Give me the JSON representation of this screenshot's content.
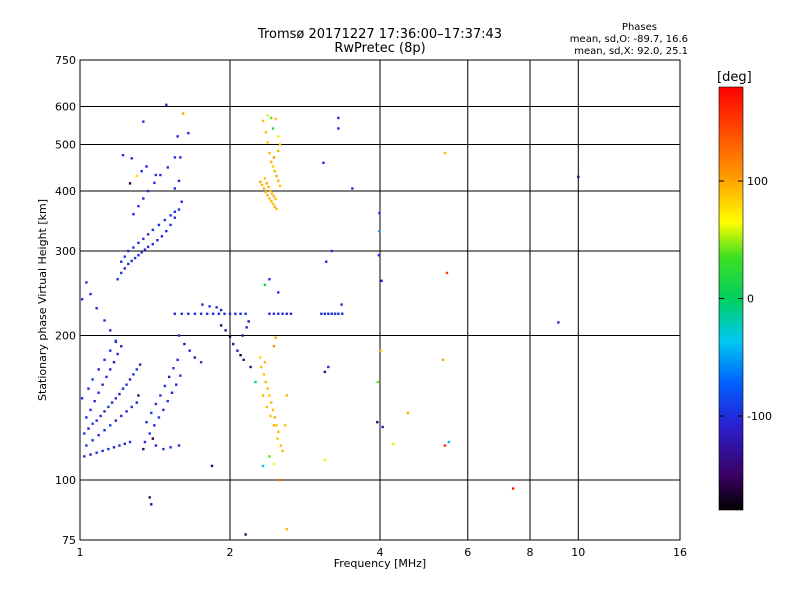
{
  "header": {
    "title": "Tromsø 20171227 17:36:00–17:37:43",
    "subtitle": "RwPretec (8p)"
  },
  "stats": {
    "heading": "Phases",
    "o_line": "mean, sd,O: -89.7, 16.6",
    "x_line": "mean, sd,X:  92.0, 25.1"
  },
  "colorbar": {
    "unit": "[deg]",
    "range": [
      -180,
      180
    ],
    "tick_values": [
      100,
      0,
      -100
    ],
    "tick_labels": [
      "100",
      "0",
      "-100"
    ]
  },
  "chart_data": {
    "type": "scatter",
    "title": "Tromsø 20171227 17:36:00–17:37:43",
    "subtitle": "RwPretec (8p)",
    "xlabel": "Frequency [MHz]",
    "ylabel": "Stationary phase Virtual Height [km]",
    "x_scale": "log",
    "y_scale": "log",
    "xlim": [
      1,
      16
    ],
    "ylim": [
      75,
      750
    ],
    "x_ticks": [
      1,
      2,
      4,
      6,
      8,
      10,
      16
    ],
    "x_tick_labels": [
      "1",
      "2",
      "4",
      "6",
      "8",
      "10",
      "16"
    ],
    "x_gridlines": [
      2,
      4,
      6,
      8,
      10
    ],
    "y_ticks": [
      75,
      100,
      200,
      300,
      400,
      500,
      600,
      750
    ],
    "y_tick_labels": [
      "75",
      "100",
      "200",
      "300",
      "400",
      "500",
      "600",
      "750"
    ],
    "y_gridlines": [
      100,
      200,
      300,
      400,
      500,
      600
    ],
    "grid": true,
    "color_variable": "phase [deg]",
    "points": [
      [
        1.02,
        112,
        -100
      ],
      [
        1.05,
        113,
        -105
      ],
      [
        1.08,
        114,
        -98
      ],
      [
        1.11,
        115,
        -102
      ],
      [
        1.14,
        116,
        -95
      ],
      [
        1.17,
        117,
        -108
      ],
      [
        1.2,
        118,
        -100
      ],
      [
        1.23,
        119,
        -112
      ],
      [
        1.26,
        120,
        -96
      ],
      [
        1.02,
        125,
        -90
      ],
      [
        1.04,
        128,
        -110
      ],
      [
        1.06,
        131,
        -88
      ],
      [
        1.08,
        133,
        -104
      ],
      [
        1.1,
        136,
        -99
      ],
      [
        1.12,
        139,
        -115
      ],
      [
        1.14,
        142,
        -92
      ],
      [
        1.16,
        145,
        -106
      ],
      [
        1.18,
        148,
        -97
      ],
      [
        1.2,
        151,
        -120
      ],
      [
        1.22,
        155,
        -101
      ],
      [
        1.24,
        158,
        -94
      ],
      [
        1.26,
        162,
        -109
      ],
      [
        1.28,
        166,
        -103
      ],
      [
        1.3,
        170,
        -91
      ],
      [
        1.32,
        174,
        -113
      ],
      [
        1.03,
        135,
        -100
      ],
      [
        1.05,
        140,
        -95
      ],
      [
        1.07,
        146,
        -107
      ],
      [
        1.09,
        152,
        -99
      ],
      [
        1.11,
        158,
        -111
      ],
      [
        1.13,
        164,
        -96
      ],
      [
        1.15,
        170,
        -104
      ],
      [
        1.17,
        176,
        -118
      ],
      [
        1.19,
        183,
        -98
      ],
      [
        1.21,
        190,
        -102
      ],
      [
        1.01,
        148,
        -97
      ],
      [
        1.04,
        155,
        -103
      ],
      [
        1.06,
        162,
        -92
      ],
      [
        1.09,
        170,
        -115
      ],
      [
        1.12,
        178,
        -100
      ],
      [
        1.15,
        186,
        -96
      ],
      [
        1.18,
        194,
        -108
      ],
      [
        1.03,
        118,
        -94
      ],
      [
        1.06,
        121,
        -101
      ],
      [
        1.09,
        124,
        -99
      ],
      [
        1.12,
        127,
        -107
      ],
      [
        1.15,
        130,
        -93
      ],
      [
        1.18,
        133,
        -110
      ],
      [
        1.21,
        136,
        -98
      ],
      [
        1.24,
        139,
        -105
      ],
      [
        1.27,
        142,
        -97
      ],
      [
        1.3,
        145,
        -112
      ],
      [
        1.35,
        120,
        -100
      ],
      [
        1.38,
        125,
        -95
      ],
      [
        1.41,
        130,
        -108
      ],
      [
        1.44,
        135,
        -99
      ],
      [
        1.47,
        140,
        -103
      ],
      [
        1.5,
        146,
        -96
      ],
      [
        1.53,
        152,
        -110
      ],
      [
        1.56,
        158,
        -101
      ],
      [
        1.59,
        165,
        -97
      ],
      [
        1.36,
        132,
        -104
      ],
      [
        1.39,
        138,
        -92
      ],
      [
        1.42,
        144,
        -106
      ],
      [
        1.45,
        150,
        -100
      ],
      [
        1.48,
        157,
        -98
      ],
      [
        1.51,
        164,
        -113
      ],
      [
        1.54,
        171,
        -95
      ],
      [
        1.57,
        178,
        -102
      ],
      [
        1.42,
        118,
        -108
      ],
      [
        1.47,
        116,
        -100
      ],
      [
        1.52,
        117,
        -97
      ],
      [
        1.58,
        118,
        -104
      ],
      [
        1.34,
        116,
        -150
      ],
      [
        1.4,
        122,
        -160
      ],
      [
        1.31,
        150,
        -145
      ],
      [
        1.01,
        238,
        -100
      ],
      [
        1.03,
        258,
        -98
      ],
      [
        1.05,
        244,
        -101
      ],
      [
        1.08,
        228,
        -105
      ],
      [
        1.12,
        215,
        -99
      ],
      [
        1.15,
        205,
        -103
      ],
      [
        1.18,
        195,
        -95
      ],
      [
        1.19,
        262,
        -100
      ],
      [
        1.21,
        270,
        -97
      ],
      [
        1.23,
        276,
        -104
      ],
      [
        1.25,
        282,
        -99
      ],
      [
        1.27,
        286,
        -102
      ],
      [
        1.29,
        290,
        -96
      ],
      [
        1.31,
        294,
        -101
      ],
      [
        1.33,
        298,
        -98
      ],
      [
        1.35,
        302,
        -103
      ],
      [
        1.37,
        306,
        -100
      ],
      [
        1.4,
        310,
        -97
      ],
      [
        1.43,
        316,
        -105
      ],
      [
        1.46,
        322,
        -99
      ],
      [
        1.49,
        330,
        -102
      ],
      [
        1.52,
        340,
        -98
      ],
      [
        1.55,
        352,
        -101
      ],
      [
        1.58,
        366,
        -96
      ],
      [
        1.6,
        380,
        -104
      ],
      [
        1.21,
        285,
        -100
      ],
      [
        1.23,
        292,
        -95
      ],
      [
        1.25,
        300,
        -103
      ],
      [
        1.28,
        305,
        -99
      ],
      [
        1.31,
        312,
        -101
      ],
      [
        1.34,
        318,
        -97
      ],
      [
        1.37,
        325,
        -104
      ],
      [
        1.4,
        332,
        -100
      ],
      [
        1.44,
        340,
        -98
      ],
      [
        1.48,
        348,
        -102
      ],
      [
        1.52,
        356,
        -99
      ],
      [
        1.55,
        362,
        -103
      ],
      [
        1.28,
        358,
        -100
      ],
      [
        1.31,
        372,
        -96
      ],
      [
        1.34,
        386,
        -104
      ],
      [
        1.37,
        400,
        -98
      ],
      [
        1.41,
        416,
        -102
      ],
      [
        1.45,
        432,
        -99
      ],
      [
        1.5,
        448,
        -101
      ],
      [
        1.55,
        470,
        -96
      ],
      [
        1.22,
        475,
        -100
      ],
      [
        1.27,
        468,
        -105
      ],
      [
        1.33,
        440,
        -98
      ],
      [
        1.36,
        450,
        -103
      ],
      [
        1.42,
        432,
        -100
      ],
      [
        1.55,
        405,
        -97
      ],
      [
        1.58,
        420,
        -104
      ],
      [
        1.26,
        415,
        -160
      ],
      [
        1.3,
        430,
        80
      ],
      [
        1.34,
        558,
        -95
      ],
      [
        1.49,
        605,
        -100
      ],
      [
        1.57,
        520,
        -102
      ],
      [
        1.59,
        470,
        -99
      ],
      [
        1.65,
        528,
        -100
      ],
      [
        1.61,
        580,
        100
      ],
      [
        1.55,
        222,
        -100
      ],
      [
        1.6,
        222,
        -98
      ],
      [
        1.65,
        222,
        -102
      ],
      [
        1.7,
        222,
        -99
      ],
      [
        1.75,
        222,
        -101
      ],
      [
        1.8,
        222,
        -97
      ],
      [
        1.85,
        222,
        -103
      ],
      [
        1.9,
        222,
        -100
      ],
      [
        1.95,
        222,
        -99
      ],
      [
        2.0,
        222,
        -101
      ],
      [
        2.05,
        222,
        -98
      ],
      [
        2.1,
        222,
        -102
      ],
      [
        2.15,
        222,
        -100
      ],
      [
        2.4,
        222,
        -100
      ],
      [
        2.45,
        222,
        -97
      ],
      [
        2.5,
        222,
        -103
      ],
      [
        2.55,
        222,
        -99
      ],
      [
        2.6,
        222,
        -101
      ],
      [
        2.65,
        222,
        -98
      ],
      [
        3.05,
        222,
        -100
      ],
      [
        3.1,
        222,
        -102
      ],
      [
        3.15,
        222,
        -99
      ],
      [
        3.2,
        222,
        -101
      ],
      [
        3.25,
        222,
        -97
      ],
      [
        3.3,
        222,
        -103
      ],
      [
        3.36,
        222,
        -100
      ],
      [
        1.58,
        200,
        -100
      ],
      [
        1.62,
        192,
        -110
      ],
      [
        1.66,
        186,
        -105
      ],
      [
        1.7,
        180,
        -120
      ],
      [
        1.75,
        176,
        -98
      ],
      [
        1.76,
        232,
        -100
      ],
      [
        1.82,
        230,
        -95
      ],
      [
        1.88,
        229,
        -102
      ],
      [
        1.92,
        226,
        -110
      ],
      [
        1.92,
        210,
        -150
      ],
      [
        1.96,
        205,
        -130
      ],
      [
        2.0,
        199,
        -160
      ],
      [
        2.03,
        192,
        -140
      ],
      [
        2.07,
        186,
        -120
      ],
      [
        2.1,
        182,
        -170
      ],
      [
        2.13,
        178,
        -145
      ],
      [
        2.16,
        208,
        -110
      ],
      [
        2.18,
        214,
        -125
      ],
      [
        2.12,
        200,
        -135
      ],
      [
        2.33,
        560,
        90
      ],
      [
        2.36,
        530,
        95
      ],
      [
        2.38,
        505,
        88
      ],
      [
        2.4,
        480,
        92
      ],
      [
        2.42,
        460,
        96
      ],
      [
        2.44,
        450,
        85
      ],
      [
        2.46,
        440,
        90
      ],
      [
        2.48,
        430,
        98
      ],
      [
        2.5,
        420,
        93
      ],
      [
        2.52,
        410,
        87
      ],
      [
        2.34,
        405,
        95
      ],
      [
        2.36,
        398,
        92
      ],
      [
        2.38,
        392,
        96
      ],
      [
        2.4,
        386,
        90
      ],
      [
        2.42,
        381,
        94
      ],
      [
        2.44,
        376,
        88
      ],
      [
        2.46,
        371,
        97
      ],
      [
        2.48,
        367,
        91
      ],
      [
        2.3,
        418,
        100
      ],
      [
        2.32,
        412,
        93
      ],
      [
        2.35,
        425,
        90
      ],
      [
        2.37,
        415,
        98
      ],
      [
        2.39,
        408,
        95
      ],
      [
        2.41,
        400,
        88
      ],
      [
        2.43,
        395,
        92
      ],
      [
        2.45,
        390,
        96
      ],
      [
        2.47,
        385,
        90
      ],
      [
        2.38,
        575,
        60
      ],
      [
        2.42,
        568,
        40
      ],
      [
        2.44,
        540,
        20
      ],
      [
        2.47,
        565,
        90
      ],
      [
        2.5,
        520,
        70
      ],
      [
        2.52,
        500,
        85
      ],
      [
        2.45,
        470,
        105
      ],
      [
        2.5,
        485,
        95
      ],
      [
        2.31,
        172,
        90
      ],
      [
        2.34,
        166,
        88
      ],
      [
        2.36,
        160,
        96
      ],
      [
        2.38,
        155,
        92
      ],
      [
        2.4,
        150,
        86
      ],
      [
        2.42,
        145,
        94
      ],
      [
        2.44,
        140,
        90
      ],
      [
        2.46,
        135,
        98
      ],
      [
        2.48,
        130,
        87
      ],
      [
        2.5,
        126,
        93
      ],
      [
        2.33,
        150,
        95
      ],
      [
        2.37,
        142,
        90
      ],
      [
        2.41,
        136,
        92
      ],
      [
        2.45,
        130,
        97
      ],
      [
        2.49,
        122,
        88
      ],
      [
        2.53,
        118,
        93
      ],
      [
        2.3,
        180,
        80
      ],
      [
        2.35,
        176,
        95
      ],
      [
        2.45,
        190,
        110
      ],
      [
        2.47,
        198,
        100
      ],
      [
        2.4,
        112,
        40
      ],
      [
        2.45,
        108,
        60
      ],
      [
        2.5,
        100,
        120
      ],
      [
        2.33,
        107,
        -30
      ],
      [
        2.55,
        115,
        95
      ],
      [
        2.58,
        130,
        90
      ],
      [
        2.6,
        150,
        95
      ],
      [
        2.35,
        255,
        10
      ],
      [
        2.4,
        262,
        -100
      ],
      [
        2.5,
        246,
        -95
      ],
      [
        2.2,
        172,
        -140
      ],
      [
        2.25,
        160,
        -20
      ],
      [
        2.15,
        77,
        -150
      ],
      [
        2.6,
        79,
        95
      ],
      [
        1.84,
        107,
        -150
      ],
      [
        1.38,
        92,
        -150
      ],
      [
        1.39,
        89,
        -140
      ],
      [
        3.3,
        568,
        -100
      ],
      [
        3.3,
        540,
        -98
      ],
      [
        3.08,
        458,
        -102
      ],
      [
        3.52,
        405,
        -100
      ],
      [
        3.2,
        300,
        -98
      ],
      [
        3.12,
        285,
        -100
      ],
      [
        3.35,
        232,
        -102
      ],
      [
        3.1,
        168,
        -140
      ],
      [
        3.15,
        172,
        -100
      ],
      [
        3.1,
        110,
        60
      ],
      [
        3.96,
        160,
        40
      ],
      [
        3.95,
        132,
        -150
      ],
      [
        3.99,
        360,
        -100
      ],
      [
        3.99,
        330,
        -60
      ],
      [
        3.98,
        294,
        -100
      ],
      [
        4.02,
        186,
        80
      ],
      [
        4.03,
        260,
        -100
      ],
      [
        4.05,
        129,
        -120
      ],
      [
        4.25,
        119,
        60
      ],
      [
        4.55,
        138,
        100
      ],
      [
        5.45,
        270,
        150
      ],
      [
        5.4,
        480,
        90
      ],
      [
        5.35,
        178,
        100
      ],
      [
        5.4,
        118,
        160
      ],
      [
        5.5,
        120,
        -40
      ],
      [
        7.4,
        96,
        170
      ],
      [
        9.12,
        213,
        -100
      ],
      [
        10,
        428,
        -150
      ]
    ]
  }
}
